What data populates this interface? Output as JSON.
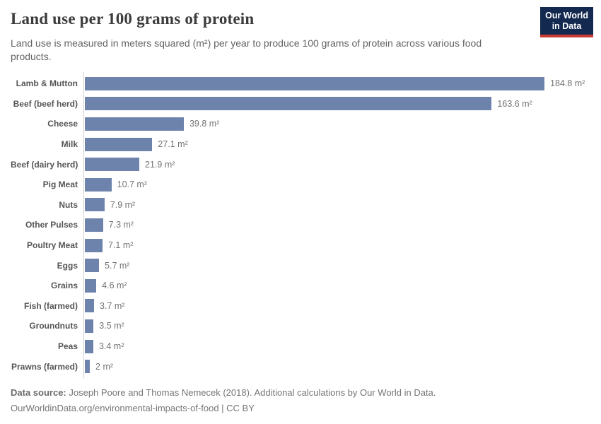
{
  "header": {
    "title": "Land use per 100 grams of protein",
    "subtitle": "Land use is measured in meters squared (m²) per year to produce 100 grams of protein across various food products.",
    "logo": {
      "line1": "Our World",
      "line2": "in Data"
    }
  },
  "chart_data": {
    "type": "bar",
    "orientation": "horizontal",
    "title": "Land use per 100 grams of protein",
    "xlabel": "",
    "ylabel": "",
    "unit": "m²",
    "xlim": [
      0,
      184.8
    ],
    "xmax": 184.8,
    "grid": false,
    "legend": "none",
    "bar_color": "#6d83ac",
    "categories": [
      "Lamb & Mutton",
      "Beef (beef herd)",
      "Cheese",
      "Milk",
      "Beef (dairy herd)",
      "Pig Meat",
      "Nuts",
      "Other Pulses",
      "Poultry Meat",
      "Eggs",
      "Grains",
      "Fish (farmed)",
      "Groundnuts",
      "Peas",
      "Prawns (farmed)"
    ],
    "values": [
      184.8,
      163.6,
      39.8,
      27.1,
      21.9,
      10.7,
      7.9,
      7.3,
      7.1,
      5.7,
      4.6,
      3.7,
      3.5,
      3.4,
      2
    ],
    "value_labels": [
      "184.8 m²",
      "163.6 m²",
      "39.8 m²",
      "27.1 m²",
      "21.9 m²",
      "10.7 m²",
      "7.9 m²",
      "7.3 m²",
      "7.1 m²",
      "5.7 m²",
      "4.6 m²",
      "3.7 m²",
      "3.5 m²",
      "3.4 m²",
      "2 m²"
    ]
  },
  "footer": {
    "source_label": "Data source:",
    "source_text": " Joseph Poore and Thomas Nemecek (2018). Additional calculations by Our World in Data.",
    "link_line": "OurWorldinData.org/environmental-impacts-of-food | CC BY"
  },
  "colors": {
    "bar": "#6d83ac",
    "axis": "#d0d0d0",
    "logo_background": "#13294f",
    "logo_accent": "#cb3b31"
  }
}
